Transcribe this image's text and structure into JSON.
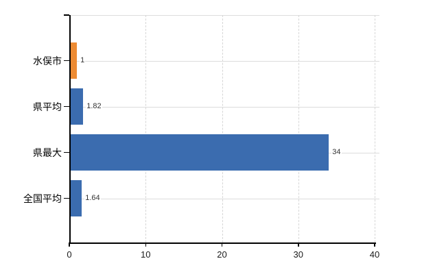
{
  "chart_data": {
    "type": "bar",
    "orientation": "horizontal",
    "title": "",
    "categories": [
      "水俣市",
      "県平均",
      "県最大",
      "全国平均"
    ],
    "values": [
      1,
      1.82,
      34,
      1.64
    ],
    "value_labels": [
      "1",
      "1.82",
      "34",
      "1.64"
    ],
    "bar_colors": [
      "#ED8B33",
      "#3B6CAF",
      "#3B6CAF",
      "#3B6CAF"
    ],
    "xlim": [
      0,
      40
    ],
    "x_ticks": [
      0,
      10,
      20,
      30,
      40
    ],
    "x_tick_labels": [
      "0",
      "10",
      "20",
      "30",
      "40"
    ],
    "grid": {
      "vertical_dashed": true,
      "horizontal_at_category_centers": true,
      "top_border": true
    },
    "legend": "none"
  },
  "colors": {
    "bar_blue": "#3B6CAF",
    "bar_orange": "#ED8B33",
    "axis": "#000000",
    "gridline": "#DCDCDC",
    "value_label_text": "#333333",
    "category_label_text": "#000000",
    "background": "#FFFFFF"
  }
}
